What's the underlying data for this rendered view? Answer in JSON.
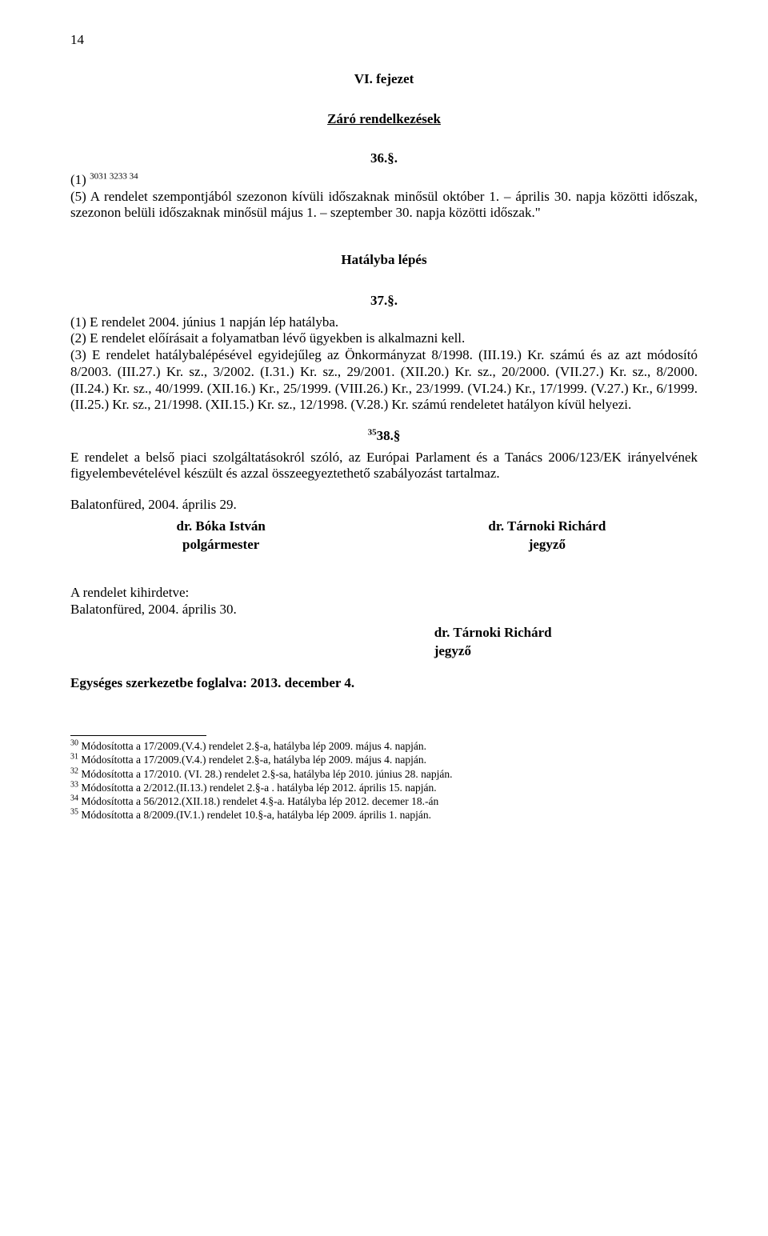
{
  "page_number": "14",
  "chapter": "VI. fejezet",
  "closing_title": "Záró rendelkezések",
  "s36": {
    "number": "36.§.",
    "p1_prefix": "(1) ",
    "p1_sup": "3031 3233 34",
    "p5": "(5) A rendelet szempontjából szezonon kívüli időszaknak minősül október 1. – április 30. napja közötti időszak, szezonon belüli időszaknak minősül május 1. – szeptember 30. napja közötti időszak.\""
  },
  "effect_title": "Hatályba lépés",
  "s37": {
    "number": "37.§.",
    "body": "(1) E rendelet 2004. június 1 napján lép hatályba.\n(2) E rendelet előírásait a folyamatban lévő ügyekben is alkalmazni kell.\n(3) E rendelet hatálybalépésével egyidejűleg az Önkormányzat 8/1998. (III.19.) Kr. számú és az azt módosító 8/2003. (III.27.) Kr. sz., 3/2002. (I.31.) Kr. sz., 29/2001. (XII.20.) Kr. sz., 20/2000. (VII.27.) Kr. sz., 8/2000. (II.24.) Kr. sz., 40/1999. (XII.16.) Kr., 25/1999. (VIII.26.) Kr., 23/1999. (VI.24.) Kr., 17/1999. (V.27.) Kr., 6/1999. (II.25.) Kr. sz., 21/1998. (XII.15.) Kr. sz., 12/1998. (V.28.) Kr. számú rendeletet hatályon kívül helyezi."
  },
  "s38": {
    "sup": "35",
    "number": "38.§",
    "body": "E rendelet a belső piaci szolgáltatásokról szóló, az Európai Parlament és a Tanács 2006/123/EK irányelvének figyelembevételével készült és azzal összeegyeztethető szabályozást tartalmaz."
  },
  "date1": "Balatonfüred, 2004. április 29.",
  "sig": {
    "left_name": "dr. Bóka István",
    "left_role": "polgármester",
    "right_name": "dr. Tárnoki Richárd",
    "right_role": "jegyző"
  },
  "publish_label": "A rendelet kihirdetve:",
  "date2": "Balatonfüred, 2004. április 30.",
  "sig2_name": "dr. Tárnoki Richárd",
  "sig2_role": "jegyző",
  "consolidated": "Egységes szerkezetbe foglalva: 2013. december 4.",
  "footnotes": {
    "f30": "Módosította a 17/2009.(V.4.) rendelet 2.§-a, hatályba lép 2009. május 4. napján.",
    "f31": "Módosította a 17/2009.(V.4.) rendelet 2.§-a, hatályba lép 2009. május 4. napján.",
    "f32": "Módosította a 17/2010. (VI. 28.) rendelet 2.§-sa, hatályba lép 2010. június 28. napján.",
    "f33": "Módosította a 2/2012.(II.13.) rendelet 2.§-a . hatályba lép 2012. április 15. napján.",
    "f34": "Módosította a 56/2012.(XII.18.) rendelet 4.§-a. Hatályba lép 2012. decemer 18.-án",
    "f35": "Módosította a 8/2009.(IV.1.) rendelet 10.§-a, hatályba lép 2009. április 1. napján."
  }
}
